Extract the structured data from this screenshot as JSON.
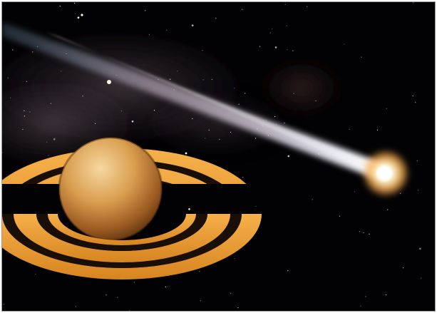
{
  "scene": {
    "subjects": [
      {
        "kind": "ringed-planet"
      },
      {
        "kind": "comet"
      },
      {
        "kind": "starfield"
      },
      {
        "kind": "nebula"
      }
    ],
    "colors": {
      "space": "#020204",
      "nebula": "#5a4a52",
      "ring_gold": "#f0a23a",
      "ring_dark": "#1a0f06",
      "planet_light": "#e7b86a",
      "planet_dark": "#7a4a1c",
      "comet_tail": "#c9d6ff",
      "comet_head": "#fff4c8"
    }
  }
}
